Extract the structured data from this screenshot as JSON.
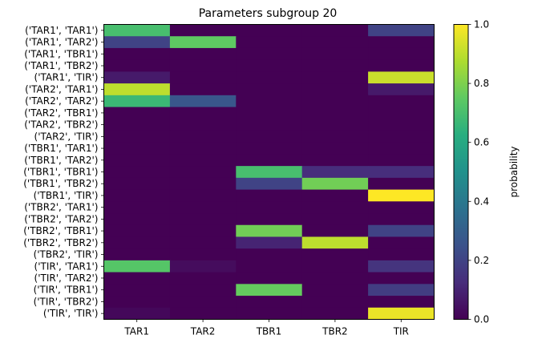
{
  "chart_data": {
    "type": "heatmap",
    "title": "Parameters subgroup 20",
    "xlabel": "",
    "ylabel": "",
    "x_categories": [
      "TAR1",
      "TAR2",
      "TBR1",
      "TBR2",
      "TIR"
    ],
    "y_categories": [
      "('TAR1', 'TAR1')",
      "('TAR1', 'TAR2')",
      "('TAR1', 'TBR1')",
      "('TAR1', 'TBR2')",
      "('TAR1', 'TIR')",
      "('TAR2', 'TAR1')",
      "('TAR2', 'TAR2')",
      "('TAR2', 'TBR1')",
      "('TAR2', 'TBR2')",
      "('TAR2', 'TIR')",
      "('TBR1', 'TAR1')",
      "('TBR1', 'TAR2')",
      "('TBR1', 'TBR1')",
      "('TBR1', 'TBR2')",
      "('TBR1', 'TIR')",
      "('TBR2', 'TAR1')",
      "('TBR2', 'TAR2')",
      "('TBR2', 'TBR1')",
      "('TBR2', 'TBR2')",
      "('TBR2', 'TIR')",
      "('TIR', 'TAR1')",
      "('TIR', 'TAR2')",
      "('TIR', 'TBR1')",
      "('TIR', 'TBR2')",
      "('TIR', 'TIR')"
    ],
    "values": [
      [
        0.7,
        0.0,
        0.0,
        0.0,
        0.2
      ],
      [
        0.2,
        0.75,
        0.0,
        0.0,
        0.0
      ],
      [
        0.0,
        0.0,
        0.0,
        0.0,
        0.0
      ],
      [
        0.0,
        0.0,
        0.0,
        0.0,
        0.0
      ],
      [
        0.07,
        0.0,
        0.0,
        0.0,
        0.92
      ],
      [
        0.9,
        0.0,
        0.0,
        0.0,
        0.07
      ],
      [
        0.67,
        0.27,
        0.0,
        0.0,
        0.0
      ],
      [
        0.0,
        0.0,
        0.0,
        0.0,
        0.0
      ],
      [
        0.0,
        0.0,
        0.0,
        0.0,
        0.0
      ],
      [
        0.0,
        0.0,
        0.0,
        0.0,
        0.0
      ],
      [
        0.0,
        0.0,
        0.0,
        0.0,
        0.0
      ],
      [
        0.0,
        0.0,
        0.0,
        0.0,
        0.0
      ],
      [
        0.0,
        0.0,
        0.7,
        0.13,
        0.13
      ],
      [
        0.0,
        0.0,
        0.2,
        0.78,
        0.0
      ],
      [
        0.0,
        0.0,
        0.0,
        0.0,
        1.0
      ],
      [
        0.0,
        0.0,
        0.0,
        0.0,
        0.0
      ],
      [
        0.0,
        0.0,
        0.0,
        0.0,
        0.0
      ],
      [
        0.0,
        0.0,
        0.78,
        0.0,
        0.2
      ],
      [
        0.0,
        0.0,
        0.1,
        0.9,
        0.0
      ],
      [
        0.0,
        0.0,
        0.0,
        0.0,
        0.0
      ],
      [
        0.73,
        0.03,
        0.0,
        0.0,
        0.15
      ],
      [
        0.0,
        0.0,
        0.0,
        0.0,
        0.0
      ],
      [
        0.0,
        0.0,
        0.76,
        0.0,
        0.18
      ],
      [
        0.0,
        0.0,
        0.0,
        0.0,
        0.0
      ],
      [
        0.02,
        0.0,
        0.0,
        0.0,
        0.97
      ]
    ],
    "colorbar": {
      "label": "probability",
      "range": [
        0.0,
        1.0
      ],
      "ticks": [
        "0.0",
        "0.2",
        "0.4",
        "0.6",
        "0.8",
        "1.0"
      ],
      "colormap": "viridis"
    }
  }
}
